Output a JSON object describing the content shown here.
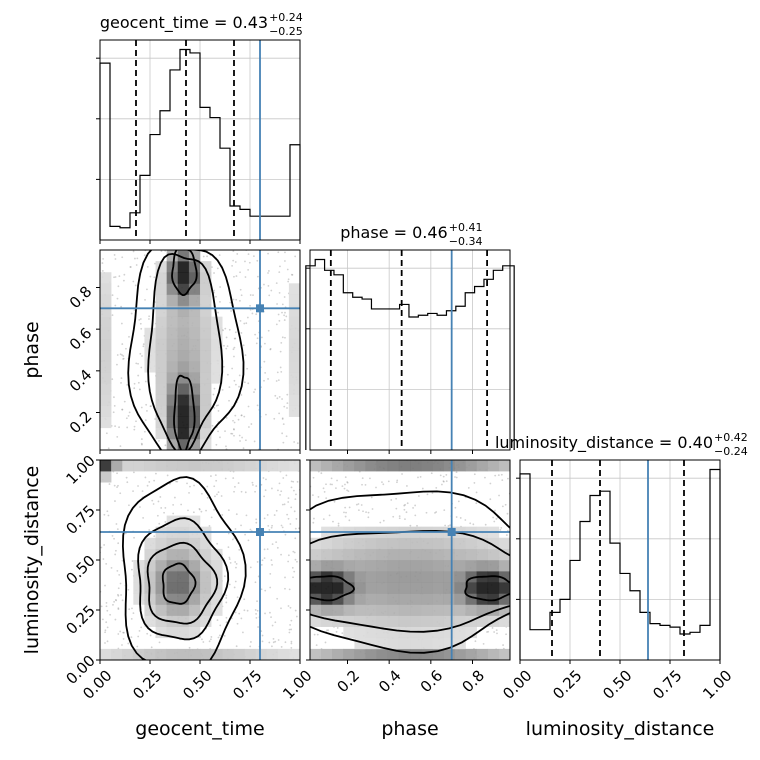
{
  "chart_data": {
    "type": "corner",
    "parameters": [
      "geocent_time",
      "phase",
      "luminosity_distance"
    ],
    "truth": {
      "geocent_time": 0.8,
      "phase": 0.7,
      "luminosity_distance": 0.64
    },
    "marginals": [
      {
        "parameter": "geocent_time",
        "title_prefix": "geocent_time = ",
        "median": "0.43",
        "plus": "+0.24",
        "minus": "−0.25",
        "quantiles": [
          0.18,
          0.43,
          0.67
        ],
        "bin_edges": [
          0,
          0.05,
          0.1,
          0.15,
          0.2,
          0.25,
          0.3,
          0.35,
          0.4,
          0.45,
          0.5,
          0.55,
          0.6,
          0.65,
          0.7,
          0.75,
          0.8,
          0.85,
          0.9,
          0.95,
          1.0
        ],
        "counts": [
          260,
          20,
          18,
          40,
          95,
          155,
          190,
          250,
          280,
          275,
          195,
          180,
          135,
          50,
          45,
          35,
          35,
          35,
          35,
          140
        ]
      },
      {
        "parameter": "phase",
        "title_prefix": "phase = ",
        "median": "0.46",
        "plus": "+0.41",
        "minus": "−0.34",
        "quantiles": [
          0.12,
          0.46,
          0.87
        ],
        "bin_edges": [
          0,
          0.045,
          0.09,
          0.135,
          0.18,
          0.225,
          0.27,
          0.315,
          0.36,
          0.405,
          0.45,
          0.495,
          0.54,
          0.585,
          0.63,
          0.675,
          0.72,
          0.765,
          0.81,
          0.855,
          0.9,
          0.945,
          1.0
        ],
        "counts": [
          205,
          212,
          200,
          195,
          175,
          170,
          168,
          157,
          157,
          157,
          162,
          148,
          150,
          152,
          150,
          155,
          160,
          175,
          182,
          190,
          200,
          205
        ]
      },
      {
        "parameter": "luminosity_distance",
        "title_prefix": "luminosity_distance = ",
        "median": "0.40",
        "plus": "+0.42",
        "minus": "−0.24",
        "quantiles": [
          0.16,
          0.4,
          0.82
        ],
        "bin_edges": [
          0,
          0.05,
          0.1,
          0.15,
          0.2,
          0.25,
          0.3,
          0.35,
          0.4,
          0.45,
          0.5,
          0.55,
          0.6,
          0.65,
          0.7,
          0.75,
          0.8,
          0.85,
          0.9,
          0.95,
          1.0
        ],
        "counts": [
          215,
          35,
          35,
          55,
          70,
          115,
          160,
          190,
          195,
          135,
          100,
          80,
          55,
          42,
          40,
          38,
          30,
          32,
          40,
          220
        ]
      }
    ],
    "contours": [
      {
        "x": "geocent_time",
        "y": "phase",
        "levels": [
          {
            "center": [
              0.42,
              0.88
            ],
            "radius": [
              0.06,
              0.11
            ]
          },
          {
            "center": [
              0.42,
              0.2
            ],
            "radius": [
              0.05,
              0.18
            ]
          },
          {
            "center": [
              0.42,
              0.5
            ],
            "radius": [
              0.18,
              0.47
            ]
          },
          {
            "center": [
              0.42,
              0.5
            ],
            "radius": [
              0.28,
              0.52
            ]
          }
        ]
      },
      {
        "x": "phase",
        "y": "luminosity_distance",
        "levels": [
          {
            "center": [
              0.1,
              0.36
            ],
            "radius": [
              0.12,
              0.06
            ]
          },
          {
            "center": [
              0.88,
              0.36
            ],
            "radius": [
              0.12,
              0.06
            ]
          },
          {
            "center": [
              0.5,
              0.4
            ],
            "radius": [
              0.6,
              0.25
            ]
          },
          {
            "center": [
              0.5,
              0.45
            ],
            "radius": [
              0.62,
              0.4
            ]
          }
        ]
      },
      {
        "x": "geocent_time",
        "y": "luminosity_distance",
        "levels": [
          {
            "center": [
              0.39,
              0.38
            ],
            "radius": [
              0.08,
              0.1
            ]
          },
          {
            "center": [
              0.4,
              0.38
            ],
            "radius": [
              0.17,
              0.2
            ]
          },
          {
            "center": [
              0.4,
              0.4
            ],
            "radius": [
              0.22,
              0.3
            ]
          },
          {
            "center": [
              0.4,
              0.42
            ],
            "radius": [
              0.3,
              0.48
            ]
          }
        ]
      }
    ],
    "axes": [
      {
        "parameter": "geocent_time",
        "range": [
          0,
          1
        ],
        "ticks": [
          "0.00",
          "0.25",
          "0.50",
          "0.75",
          "1.00"
        ],
        "tick_values": [
          0,
          0.25,
          0.5,
          0.75,
          1.0
        ]
      },
      {
        "parameter": "phase",
        "range": [
          0.02,
          0.98
        ],
        "ticks": [
          "0.2",
          "0.4",
          "0.6",
          "0.8"
        ],
        "tick_values": [
          0.2,
          0.4,
          0.6,
          0.8
        ]
      },
      {
        "parameter": "luminosity_distance",
        "range": [
          0,
          1
        ],
        "ticks": [
          "0.00",
          "0.25",
          "0.50",
          "0.75",
          "1.00"
        ],
        "tick_values": [
          0,
          0.25,
          0.5,
          0.75,
          1.0
        ]
      }
    ],
    "grid": true,
    "colors": {
      "truth": "#4682b4",
      "line": "#000000",
      "grid": "#c8c8c8"
    }
  }
}
